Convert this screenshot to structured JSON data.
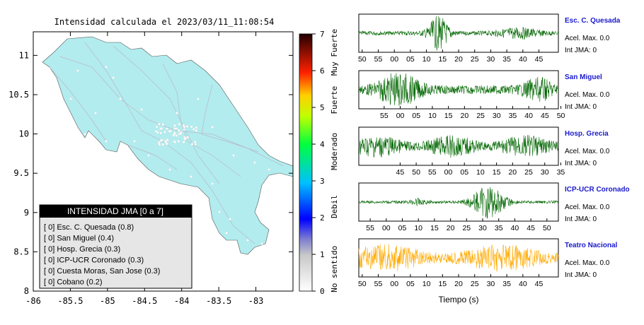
{
  "map": {
    "title": "Intensidad calculada el 2023/03/11_11:08:54",
    "x_ticks": [
      "-86",
      "-85.5",
      "-85",
      "-84.5",
      "-84",
      "-83.5",
      "-83"
    ],
    "y_ticks": [
      "11",
      "10.5",
      "10",
      "9.5",
      "9",
      "8.5",
      "8"
    ],
    "xlim": [
      -86,
      -82.5
    ],
    "ylim": [
      8,
      11.3
    ],
    "land_color": "#b2ecee",
    "station_color": "#ffffff"
  },
  "colorbar": {
    "ticks": [
      "0",
      "1",
      "2",
      "3",
      "4",
      "5",
      "6",
      "7"
    ],
    "labels": [
      "No sentido",
      "Debil",
      "Moderado",
      "Fuerte",
      "Muy Fuerte"
    ]
  },
  "legend": {
    "title": "INTENSIDAD JMA [0 a 7]",
    "items": [
      "[ 0]  Esc. C. Quesada (0.8)",
      "[ 0]  San Miguel (0.4)",
      "[ 0]  Hosp. Grecia (0.3)",
      "[ 0]  ICP-UCR Coronado (0.3)",
      "[ 0]  Cuesta Moras, San Jose (0.3)",
      "[ 0]  Cobano (0.2)"
    ]
  },
  "traces": {
    "xlabel": "Tiempo (s)",
    "accel_prefix": "Acel. Max.",
    "int_prefix": "Int JMA:",
    "stations": [
      {
        "name": "Esc. C. Quesada",
        "accel": "0.0",
        "int": "0",
        "color": "#006600",
        "ticks": [
          "50",
          "55",
          "00",
          "05",
          "10",
          "15",
          "20",
          "25",
          "30",
          "35",
          "40",
          "45"
        ]
      },
      {
        "name": "San Miguel",
        "accel": "0.0",
        "int": "0",
        "color": "#006600",
        "ticks": [
          "55",
          "00",
          "05",
          "10",
          "15",
          "20",
          "25",
          "30",
          "35",
          "40",
          "45",
          "50"
        ]
      },
      {
        "name": "Hosp. Grecia",
        "accel": "0.0",
        "int": "0",
        "color": "#006600",
        "ticks": [
          "45",
          "50",
          "55",
          "00",
          "05",
          "10",
          "15",
          "20",
          "25",
          "30",
          "35",
          "40"
        ]
      },
      {
        "name": "ICP-UCR Coronado",
        "accel": "0.0",
        "int": "0",
        "color": "#006600",
        "ticks": [
          "55",
          "00",
          "05",
          "10",
          "15",
          "20",
          "25",
          "30",
          "35",
          "40",
          "45",
          "50"
        ]
      },
      {
        "name": "Teatro Nacional",
        "accel": "0.0",
        "int": "0",
        "color": "#ffaa00",
        "ticks": [
          "50",
          "55",
          "00",
          "05",
          "10",
          "15",
          "20",
          "25",
          "30",
          "35",
          "40",
          "45"
        ]
      }
    ]
  }
}
